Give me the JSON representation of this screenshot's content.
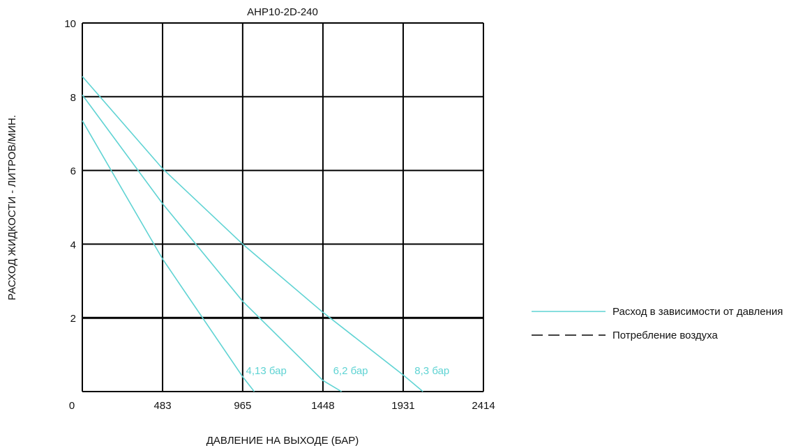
{
  "chart_data": {
    "type": "line",
    "title": "AHP10-2D-240",
    "xlabel": "ДАВЛЕНИЕ НА ВЫХОДЕ (БАР)",
    "ylabel": "РАСХОД ЖИДКОСТИ - ЛИТРОВ/МИН.",
    "xlim": [
      0,
      2414
    ],
    "ylim": [
      0,
      10
    ],
    "x_ticks": [
      "0",
      "483",
      "965",
      "1448",
      "1931",
      "2414"
    ],
    "y_ticks": [
      "2",
      "4",
      "6",
      "8",
      "10"
    ],
    "grid": true,
    "legend_position": "right",
    "colors": {
      "flow": "#5fd3d3",
      "air": "#000000",
      "grid": "#000000"
    },
    "series": [
      {
        "name": "4,13 бар",
        "points": [
          [
            0,
            7.35
          ],
          [
            483,
            3.6
          ],
          [
            965,
            0.4
          ],
          [
            1035,
            0
          ]
        ]
      },
      {
        "name": "6,2 бар",
        "points": [
          [
            0,
            8.05
          ],
          [
            483,
            5.1
          ],
          [
            965,
            2.45
          ],
          [
            1448,
            0.3
          ],
          [
            1560,
            0
          ]
        ]
      },
      {
        "name": "8,3 бар",
        "points": [
          [
            0,
            8.55
          ],
          [
            483,
            6.05
          ],
          [
            965,
            4.0
          ],
          [
            1448,
            2.15
          ],
          [
            1931,
            0.45
          ],
          [
            2050,
            0
          ]
        ]
      }
    ],
    "annotations": [
      "4,13 бар",
      "6,2 бар",
      "8,3 бар"
    ],
    "legend": [
      {
        "label": "Расход в зависимости от давления",
        "style": "solid"
      },
      {
        "label": "Потребление воздуха",
        "style": "dashed"
      }
    ]
  }
}
